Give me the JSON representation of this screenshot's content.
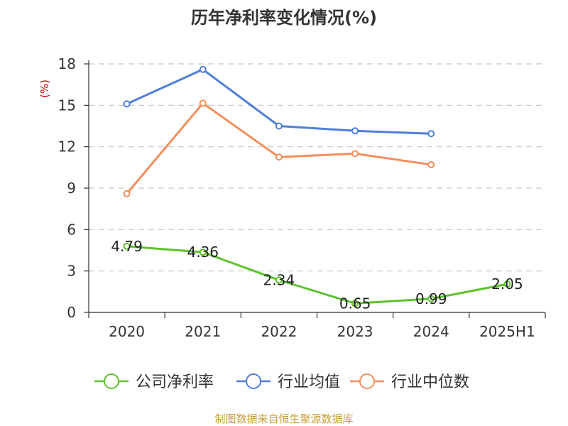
{
  "chart_data": {
    "type": "line",
    "title": "历年净利率变化情况(%)",
    "ylabel": "(%)",
    "categories": [
      "2020",
      "2021",
      "2022",
      "2023",
      "2024",
      "2025H1"
    ],
    "ylim": [
      0,
      18
    ],
    "yticks": [
      0,
      3,
      6,
      9,
      12,
      15,
      18
    ],
    "grid": true,
    "legend_position": "bottom",
    "series": [
      {
        "name": "公司净利率",
        "color": "#5ec22c",
        "values": [
          4.79,
          4.36,
          2.34,
          0.65,
          0.99,
          2.05
        ],
        "data_labels": [
          "4.79",
          "4.36",
          "2.34",
          "0.65",
          "0.99",
          "2.05"
        ]
      },
      {
        "name": "行业均值",
        "color": "#4f7fd8",
        "values": [
          15.1,
          17.6,
          13.5,
          13.15,
          12.95,
          null
        ]
      },
      {
        "name": "行业中位数",
        "color": "#f28e5c",
        "values": [
          8.6,
          15.15,
          11.25,
          11.5,
          10.7,
          null
        ]
      }
    ]
  },
  "source": {
    "text": "制图数据来自恒生聚源数据库",
    "color": "#c9a03a"
  },
  "ylabel_color": "#cc0000"
}
